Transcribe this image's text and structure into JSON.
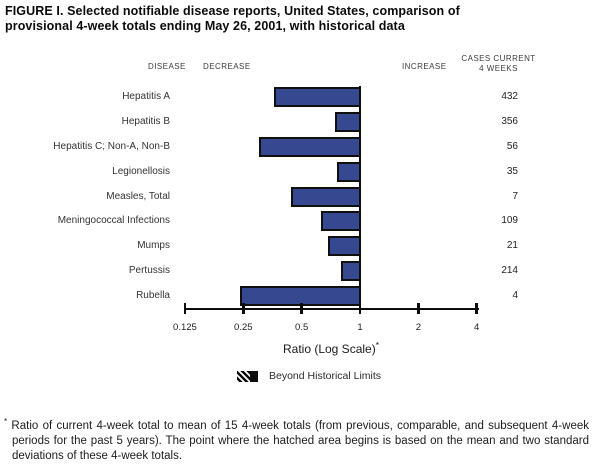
{
  "title": {
    "line1": "FIGURE I. Selected notifiable disease reports, United States, comparison of",
    "line2": "provisional 4-week totals ending May 26, 2001, with historical data"
  },
  "column_headers": {
    "disease": "DISEASE",
    "decrease": "DECREASE",
    "increase": "INCREASE",
    "cases_current_line1": "CASES CURRENT",
    "cases_current_line2": "4 WEEKS"
  },
  "chart_data": {
    "type": "bar",
    "orientation": "horizontal",
    "scale": "log2",
    "baseline_ratio": 1,
    "categories": [
      "Hepatitis A",
      "Hepatitis B",
      "Hepatitis C; Non-A, Non-B",
      "Legionellosis",
      "Measles, Total",
      "Meningococcal Infections",
      "Mumps",
      "Pertussis",
      "Rubella"
    ],
    "series": [
      {
        "name": "ratio",
        "values": [
          0.36,
          0.74,
          0.3,
          0.76,
          0.44,
          0.63,
          0.68,
          0.8,
          0.24
        ]
      },
      {
        "name": "cases_current_4_weeks",
        "values": [
          432,
          356,
          56,
          35,
          7,
          109,
          21,
          214,
          4
        ]
      }
    ],
    "xlabel": "Ratio (Log Scale)",
    "xlabel_superscript": "*",
    "ticks": [
      0.125,
      0.25,
      0.5,
      1,
      2,
      4
    ],
    "tick_labels": [
      "0.125",
      "0.25",
      "0.5",
      "1",
      "2",
      "4"
    ],
    "xlim": [
      0.125,
      4
    ],
    "bar_color": "#36488f",
    "bar_border_color": "#101010",
    "legend": [
      {
        "label": "Beyond Historical Limits",
        "swatch": "hatched-black"
      }
    ]
  },
  "footnote": {
    "marker": "*",
    "text": "Ratio of current 4-week total to mean of 15 4-week totals (from previous, comparable, and subsequent 4-week periods for the past 5 years). The point where the hatched area begins is based on the mean and two standard deviations of these 4-week totals."
  }
}
